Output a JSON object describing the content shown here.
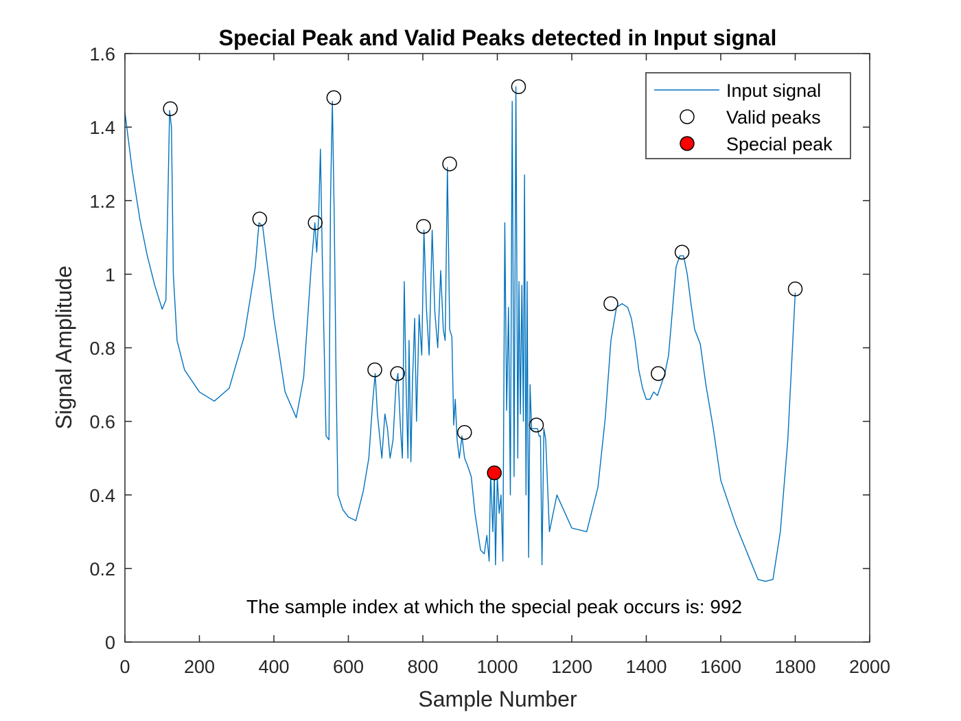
{
  "chart_data": {
    "type": "line",
    "title": "Special Peak and Valid Peaks detected in Input signal",
    "xlabel": "Sample Number",
    "ylabel": "Signal Amplitude",
    "xlim": [
      0,
      2000
    ],
    "ylim": [
      0,
      1.6
    ],
    "xticks": [
      0,
      200,
      400,
      600,
      800,
      1000,
      1200,
      1400,
      1600,
      1800,
      2000
    ],
    "yticks": [
      0,
      0.2,
      0.4,
      0.6,
      0.8,
      1,
      1.2,
      1.4,
      1.6
    ],
    "xtick_labels": [
      "0",
      "200",
      "400",
      "600",
      "800",
      "1000",
      "1200",
      "1400",
      "1600",
      "1800",
      "2000"
    ],
    "ytick_labels": [
      "0",
      "0.2",
      "0.4",
      "0.6",
      "0.8",
      "1",
      "1.2",
      "1.4",
      "1.6"
    ],
    "grid": false,
    "legend_position": "top-right",
    "colors": {
      "signal": "#0072BD",
      "special_peak": "#FF0000",
      "valid_peak_edge": "#000000"
    },
    "series": [
      {
        "name": "Input signal",
        "kind": "line",
        "x": [
          0,
          20,
          40,
          60,
          80,
          100,
          110,
          120,
          125,
          130,
          140,
          160,
          200,
          240,
          280,
          320,
          350,
          360,
          370,
          400,
          430,
          460,
          480,
          500,
          510,
          515,
          520,
          525,
          530,
          540,
          548,
          552,
          557,
          562,
          567,
          572,
          585,
          600,
          620,
          640,
          655,
          665,
          672,
          678,
          690,
          698,
          705,
          712,
          720,
          728,
          733,
          740,
          745,
          750,
          755,
          760,
          763,
          768,
          772,
          778,
          783,
          790,
          797,
          803,
          810,
          817,
          825,
          832,
          840,
          848,
          855,
          860,
          866,
          872,
          878,
          883,
          887,
          892,
          898,
          905,
          912,
          920,
          930,
          940,
          955,
          965,
          972,
          978,
          982,
          988,
          992,
          995,
          1000,
          1005,
          1010,
          1015,
          1020,
          1025,
          1030,
          1035,
          1040,
          1045,
          1050,
          1055,
          1058,
          1062,
          1066,
          1070,
          1073,
          1077,
          1080,
          1084,
          1088,
          1092,
          1096,
          1100,
          1104,
          1108,
          1112,
          1116,
          1120,
          1125,
          1130,
          1140,
          1160,
          1200,
          1240,
          1270,
          1290,
          1305,
          1320,
          1335,
          1350,
          1360,
          1370,
          1380,
          1390,
          1400,
          1410,
          1420,
          1430,
          1440,
          1450,
          1460,
          1470,
          1480,
          1490,
          1500,
          1510,
          1520,
          1530,
          1545,
          1560,
          1580,
          1600,
          1640,
          1680,
          1700,
          1720,
          1740,
          1760,
          1780,
          1790,
          1800
        ],
        "y": [
          1.44,
          1.28,
          1.15,
          1.05,
          0.97,
          0.905,
          0.93,
          1.445,
          1.4,
          1.0,
          0.82,
          0.74,
          0.68,
          0.655,
          0.69,
          0.83,
          1.02,
          1.14,
          1.13,
          0.88,
          0.68,
          0.61,
          0.72,
          1.02,
          1.14,
          1.06,
          1.15,
          1.34,
          1.05,
          0.56,
          0.55,
          1.2,
          1.47,
          1.16,
          0.72,
          0.4,
          0.36,
          0.34,
          0.33,
          0.41,
          0.5,
          0.65,
          0.73,
          0.62,
          0.5,
          0.62,
          0.58,
          0.5,
          0.55,
          0.7,
          0.73,
          0.58,
          0.5,
          0.98,
          0.7,
          0.5,
          0.82,
          0.49,
          0.7,
          0.88,
          0.6,
          0.89,
          0.78,
          1.12,
          0.9,
          0.78,
          1.12,
          0.9,
          0.8,
          1.01,
          0.85,
          0.82,
          1.29,
          0.85,
          0.83,
          0.59,
          0.66,
          0.55,
          0.5,
          0.56,
          0.5,
          0.48,
          0.45,
          0.35,
          0.25,
          0.24,
          0.29,
          0.22,
          0.46,
          0.3,
          0.46,
          0.21,
          0.45,
          0.35,
          0.4,
          0.22,
          1.14,
          0.63,
          0.91,
          0.4,
          1.47,
          0.45,
          1.51,
          0.5,
          0.98,
          0.62,
          0.97,
          0.6,
          1.27,
          0.4,
          0.98,
          0.23,
          0.7,
          0.58,
          0.58,
          0.58,
          0.58,
          0.58,
          0.56,
          0.56,
          0.21,
          0.58,
          0.55,
          0.3,
          0.4,
          0.31,
          0.3,
          0.42,
          0.61,
          0.82,
          0.91,
          0.92,
          0.91,
          0.88,
          0.82,
          0.74,
          0.69,
          0.66,
          0.66,
          0.68,
          0.67,
          0.7,
          0.73,
          0.78,
          0.9,
          1.02,
          1.05,
          1.05,
          1.0,
          0.92,
          0.85,
          0.81,
          0.7,
          0.58,
          0.44,
          0.32,
          0.22,
          0.17,
          0.165,
          0.17,
          0.3,
          0.55,
          0.75,
          0.95
        ]
      },
      {
        "name": "Valid peaks",
        "kind": "markers",
        "x": [
          122,
          362,
          511,
          561,
          671,
          732,
          802,
          872,
          912,
          1057,
          1105,
          1305,
          1432,
          1496,
          1800
        ],
        "y": [
          1.45,
          1.15,
          1.14,
          1.48,
          0.74,
          0.73,
          1.13,
          1.3,
          0.57,
          1.51,
          0.59,
          0.92,
          0.73,
          1.06,
          0.96
        ]
      },
      {
        "name": "Special peak",
        "kind": "marker-filled",
        "x": [
          992
        ],
        "y": [
          0.46
        ]
      }
    ],
    "annotation": "The sample index at which the special peak occurs is: 992"
  }
}
